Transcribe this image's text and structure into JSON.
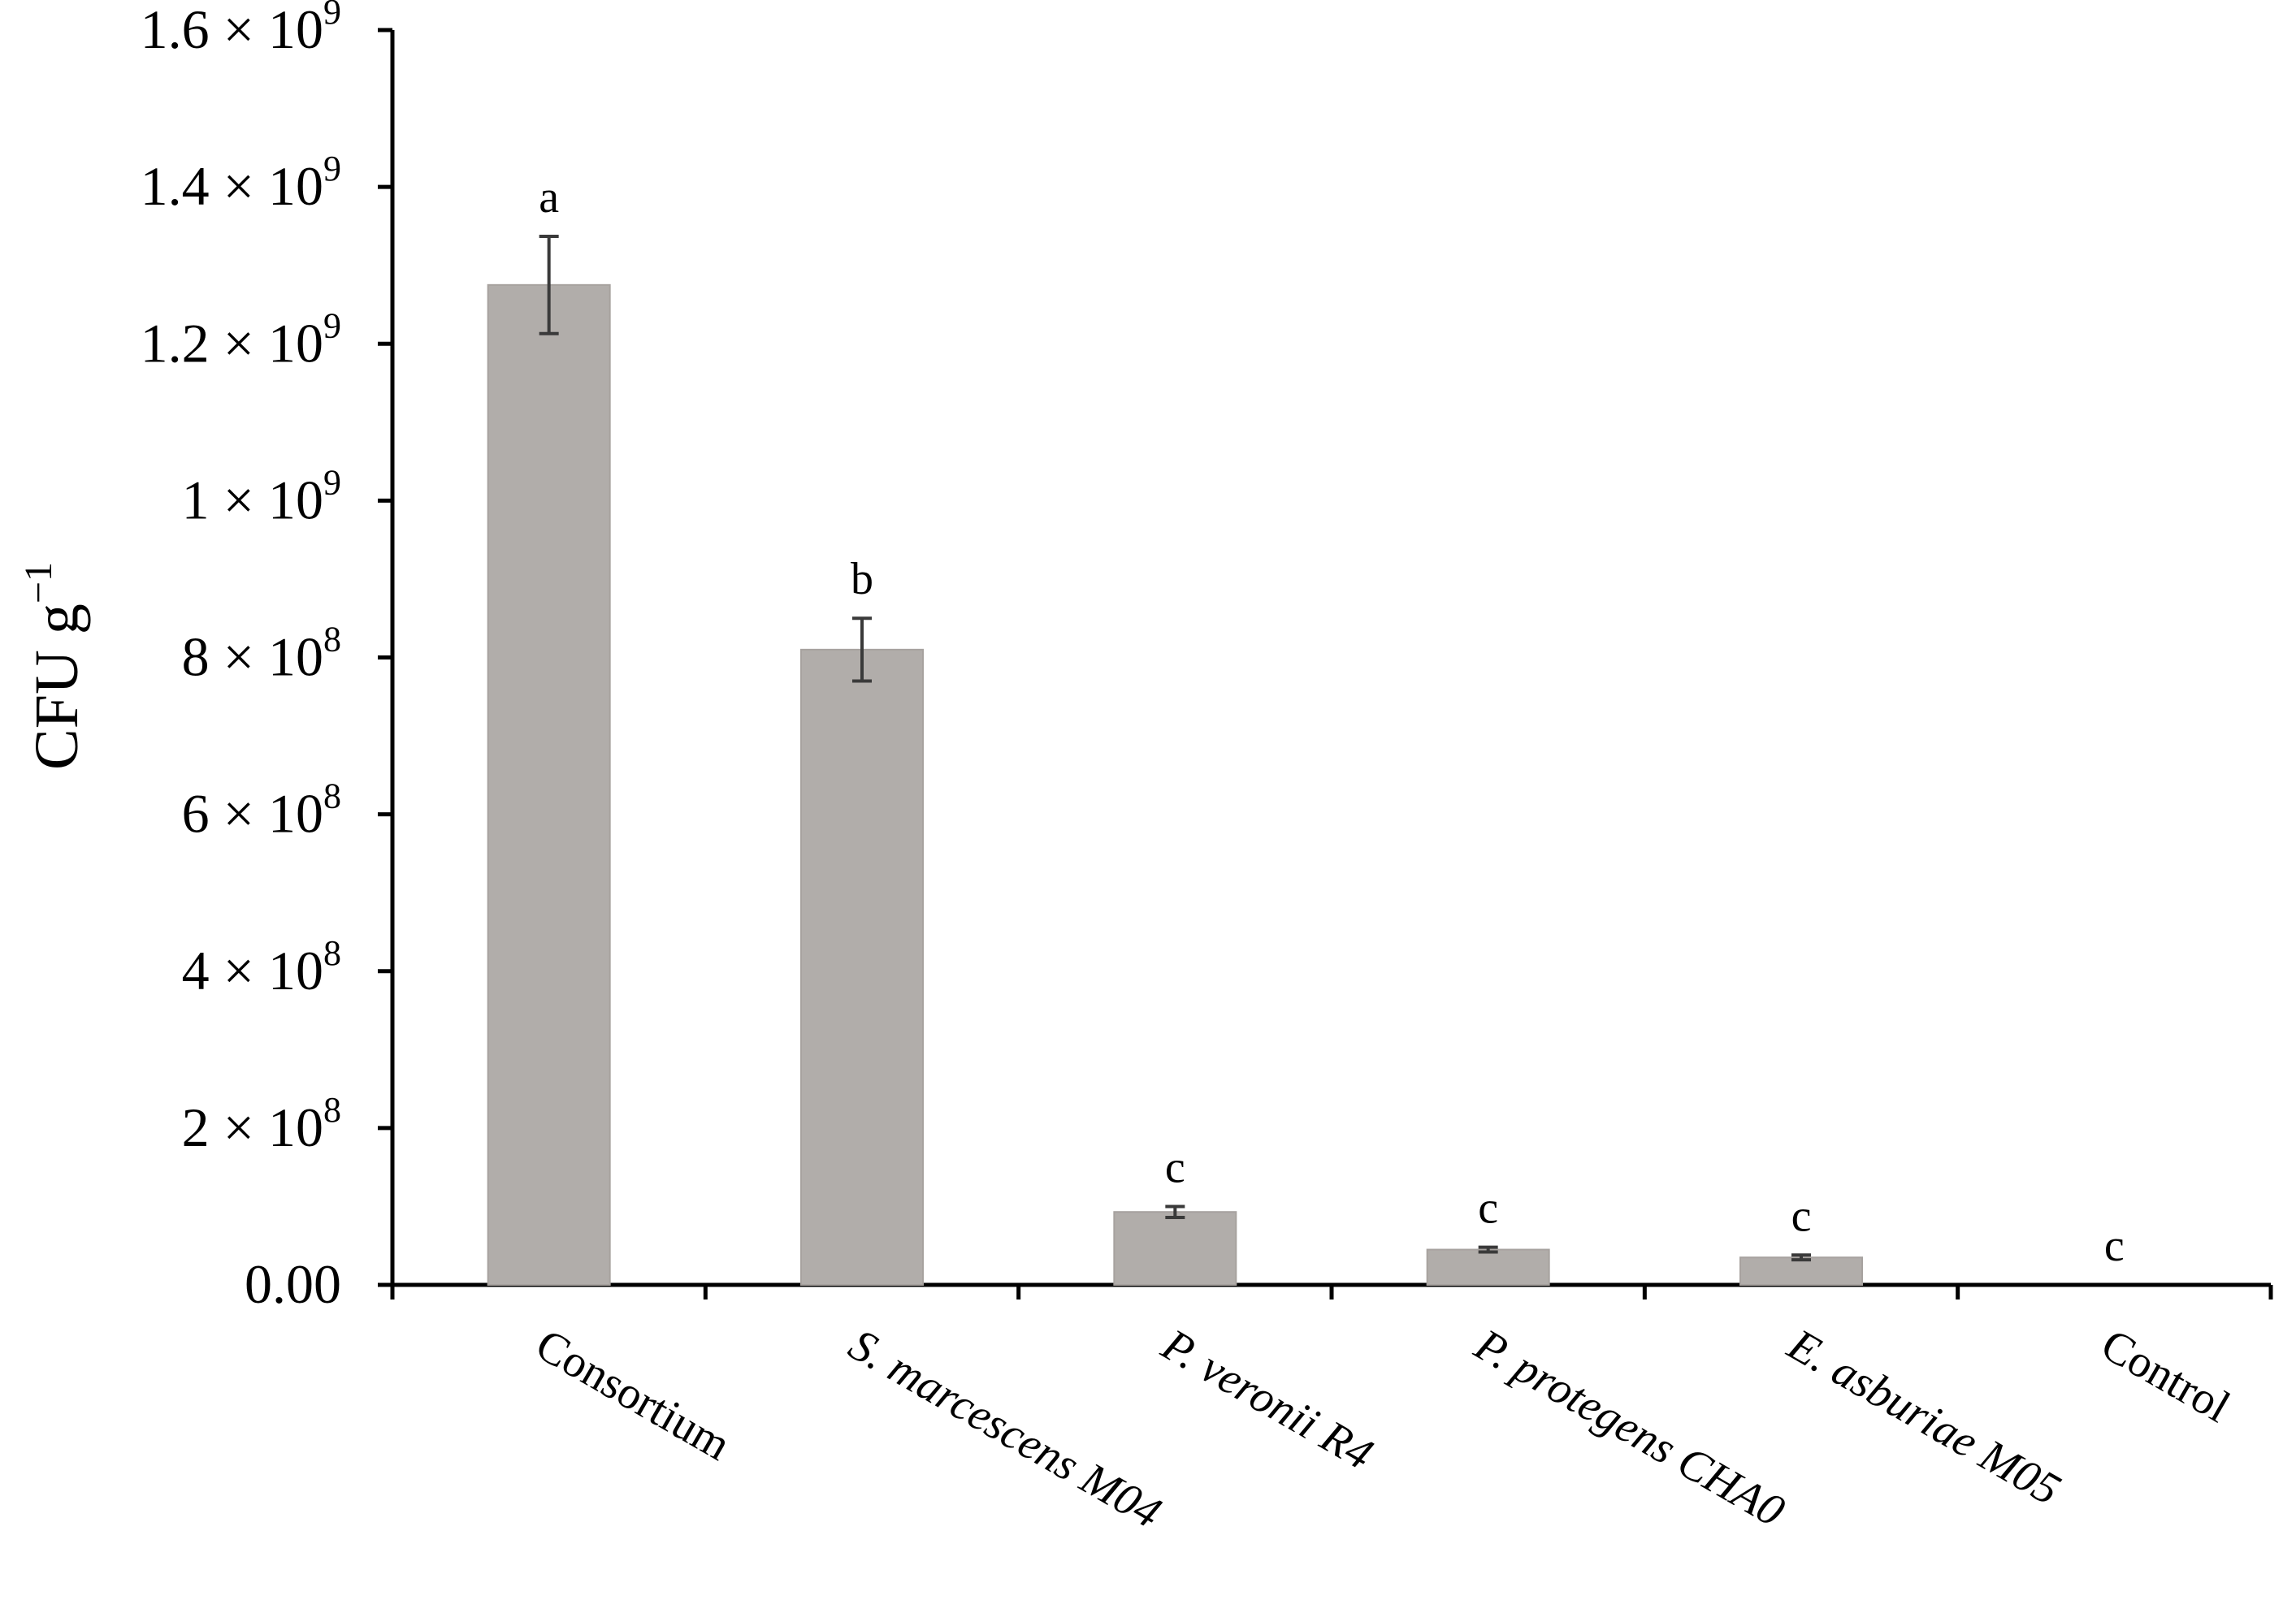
{
  "chart_data": {
    "type": "bar",
    "title": "",
    "xlabel": "",
    "ylabel": "CFU g",
    "ylabel_superscript": "−1",
    "categories": [
      {
        "prefix": "",
        "name": "Consortium",
        "italic": false
      },
      {
        "prefix": "S. marcescens",
        "name": " M04",
        "italic": true
      },
      {
        "prefix": "P. veronii",
        "name": " R4",
        "italic": true
      },
      {
        "prefix": "P. protegens",
        "name": " CHA0",
        "italic": true
      },
      {
        "prefix": "E. asburiae",
        "name": " M05",
        "italic": true
      },
      {
        "prefix": "",
        "name": "Control",
        "italic": false
      }
    ],
    "values": [
      1275000000,
      810000000,
      93000000,
      45000000,
      35000000,
      0
    ],
    "errors": [
      62000000,
      40000000,
      7000000,
      3000000,
      3000000,
      0
    ],
    "significance": [
      "a",
      "b",
      "c",
      "c",
      "c",
      "c"
    ],
    "ylim": [
      0,
      1600000000
    ],
    "yticks": [
      {
        "value": 0,
        "mant": "0.00",
        "exp": ""
      },
      {
        "value": 200000000,
        "mant": "2 × 10",
        "exp": "8"
      },
      {
        "value": 400000000,
        "mant": "4 × 10",
        "exp": "8"
      },
      {
        "value": 600000000,
        "mant": "6 × 10",
        "exp": "8"
      },
      {
        "value": 800000000,
        "mant": "8 × 10",
        "exp": "8"
      },
      {
        "value": 1000000000,
        "mant": "1 × 10",
        "exp": "9"
      },
      {
        "value": 1200000000,
        "mant": "1.2 × 10",
        "exp": "9"
      },
      {
        "value": 1400000000,
        "mant": "1.4 × 10",
        "exp": "9"
      },
      {
        "value": 1600000000,
        "mant": "1.6 × 10",
        "exp": "9"
      }
    ],
    "grid": false,
    "legend": "none",
    "colors": {
      "bar": "#b1adaa",
      "bar_edge": "#a7a29f",
      "axis": "#000000",
      "error": "#3a3a3a"
    }
  }
}
